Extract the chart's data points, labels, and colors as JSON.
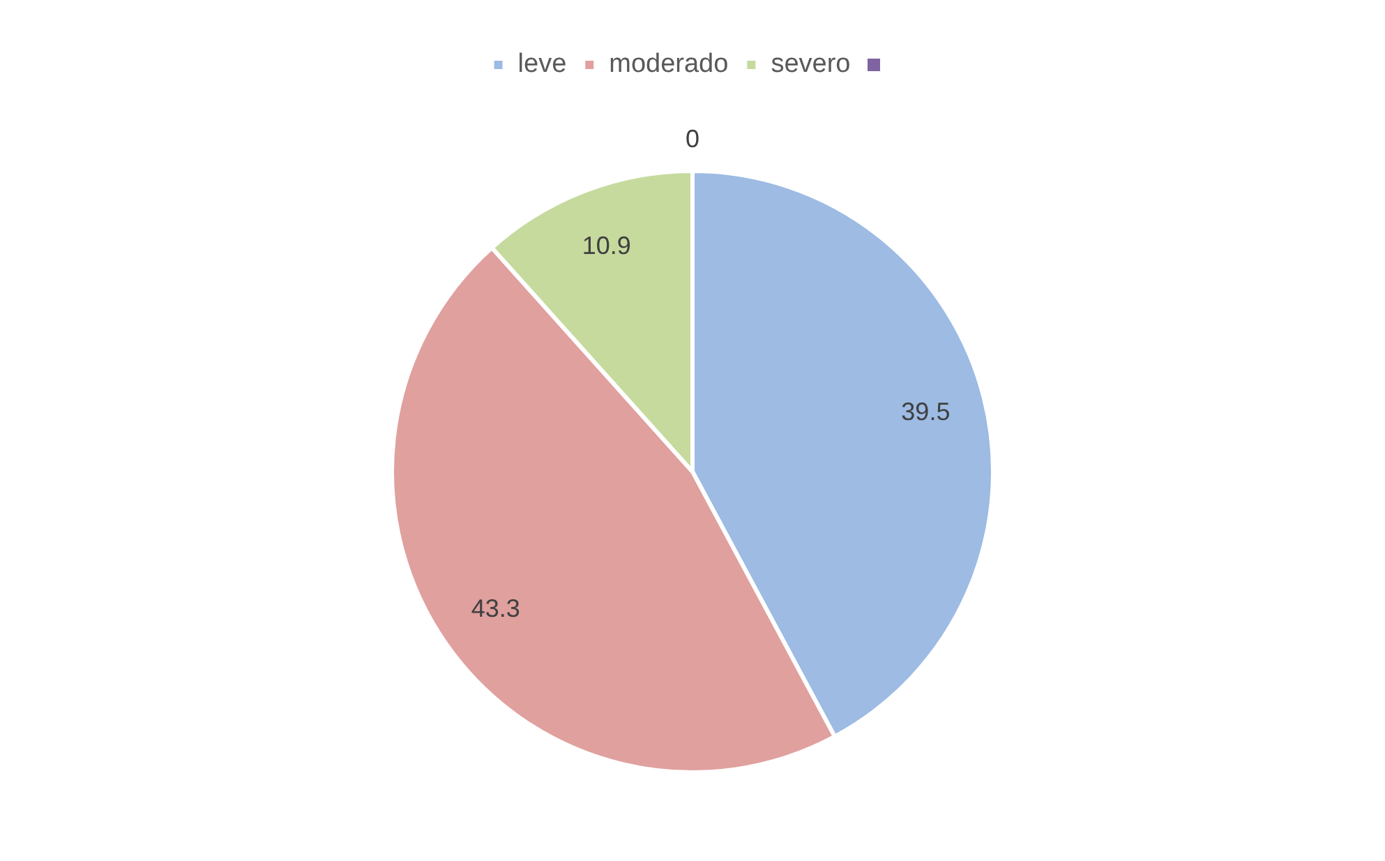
{
  "chart_data": {
    "type": "pie",
    "categories": [
      "leve",
      "moderado",
      "severo",
      null
    ],
    "values": [
      39.5,
      43.3,
      10.9,
      0
    ],
    "value_labels": [
      "39.5",
      "43.3",
      "10.9",
      "0"
    ],
    "colors": [
      "#9dbbe3",
      "#e0a09e",
      "#c6da9e",
      "#8064a2"
    ],
    "legend": "top"
  }
}
